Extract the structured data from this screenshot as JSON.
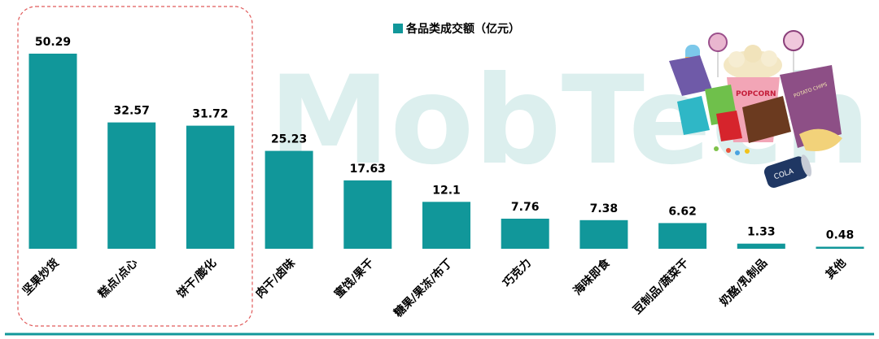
{
  "watermark_text": "MobTech",
  "chart_data": {
    "type": "bar",
    "title": "",
    "xlabel": "",
    "ylabel": "",
    "legend": {
      "label": "各品类成交额（亿元）",
      "placement": "top-center"
    },
    "categories": [
      "坚果炒货",
      "糕点/点心",
      "饼干/膨化",
      "肉干/卤味",
      "蜜饯/果干",
      "糖果/果冻/布丁",
      "巧克力",
      "海味即食",
      "豆制品/蔬菜干",
      "奶酪/乳制品",
      "其他"
    ],
    "values": [
      50.29,
      32.57,
      31.72,
      25.23,
      17.63,
      12.1,
      7.76,
      7.38,
      6.62,
      1.33,
      0.48
    ],
    "value_labels": [
      "50.29",
      "32.57",
      "31.72",
      "25.23",
      "17.63",
      "12.1",
      "7.76",
      "7.38",
      "6.62",
      "1.33",
      "0.48"
    ],
    "ylim": [
      0,
      55
    ],
    "grid": false,
    "highlight": {
      "style": "dashed-rounded-box",
      "categories": [
        "坚果炒货",
        "糕点/点心",
        "饼干/膨化"
      ],
      "color": "#e05a5a"
    },
    "colors": {
      "bar": "#11979a",
      "baseline": "#11979a",
      "text": "#000000",
      "watermark": "#d9efee"
    }
  },
  "illustration": {
    "name": "snack-illustration",
    "labels": [
      "POPCORN",
      "COLA",
      "POTATO CHIPS"
    ]
  }
}
